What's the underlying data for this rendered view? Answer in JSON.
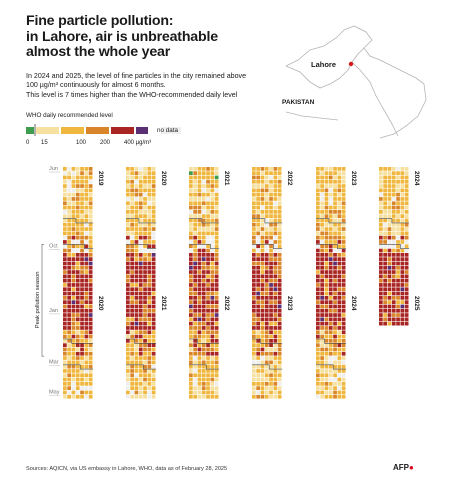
{
  "title": {
    "line1": "Fine particle pollution:",
    "line2": "in Lahore, air is unbreathable",
    "line3": "almost the whole year"
  },
  "subtitle": {
    "line1": "In 2024 and 2025, the level of fine particles in the city remained above",
    "line2": "100 µg/m³ continuously for almost 6 months.",
    "line3": "This level is 7 times higher than the WHO-recommended daily level"
  },
  "map": {
    "city": "Lahore",
    "country": "PAKISTAN"
  },
  "colors": {
    "good": "#3f9b4e",
    "low": "#f6e0a0",
    "mid": "#f0b73e",
    "high": "#d9862a",
    "severe": "#a82523",
    "extreme": "#5b2f74",
    "nodata": "#efefef",
    "threshold_line": "#444444"
  },
  "chart_data": {
    "type": "heatmap",
    "title": "Fine particle pollution: in Lahore, air is unbreathable almost the whole year",
    "unit": "µg/m³",
    "legend": {
      "label": "WHO daily recommended level",
      "ticks": [
        "0",
        "15",
        "100",
        "200",
        "400 µg/m³"
      ],
      "nodata_label": "no data"
    },
    "month_labels": [
      "Jun",
      "Oct",
      "Jan",
      "Mar",
      "May"
    ],
    "season_label": "Peak pollution season",
    "seasons": [
      {
        "start_year": "2019",
        "end_year": "2020"
      },
      {
        "start_year": "2020",
        "end_year": "2021"
      },
      {
        "start_year": "2021",
        "end_year": "2022"
      },
      {
        "start_year": "2022",
        "end_year": "2023"
      },
      {
        "start_year": "2023",
        "end_year": "2024"
      },
      {
        "start_year": "2024",
        "end_year": "2025"
      }
    ]
  },
  "footer": {
    "source": "Sources: AQICN, via US embassy in Lahore, WHO, data as of February 28, 2025",
    "logo": "AFP"
  }
}
